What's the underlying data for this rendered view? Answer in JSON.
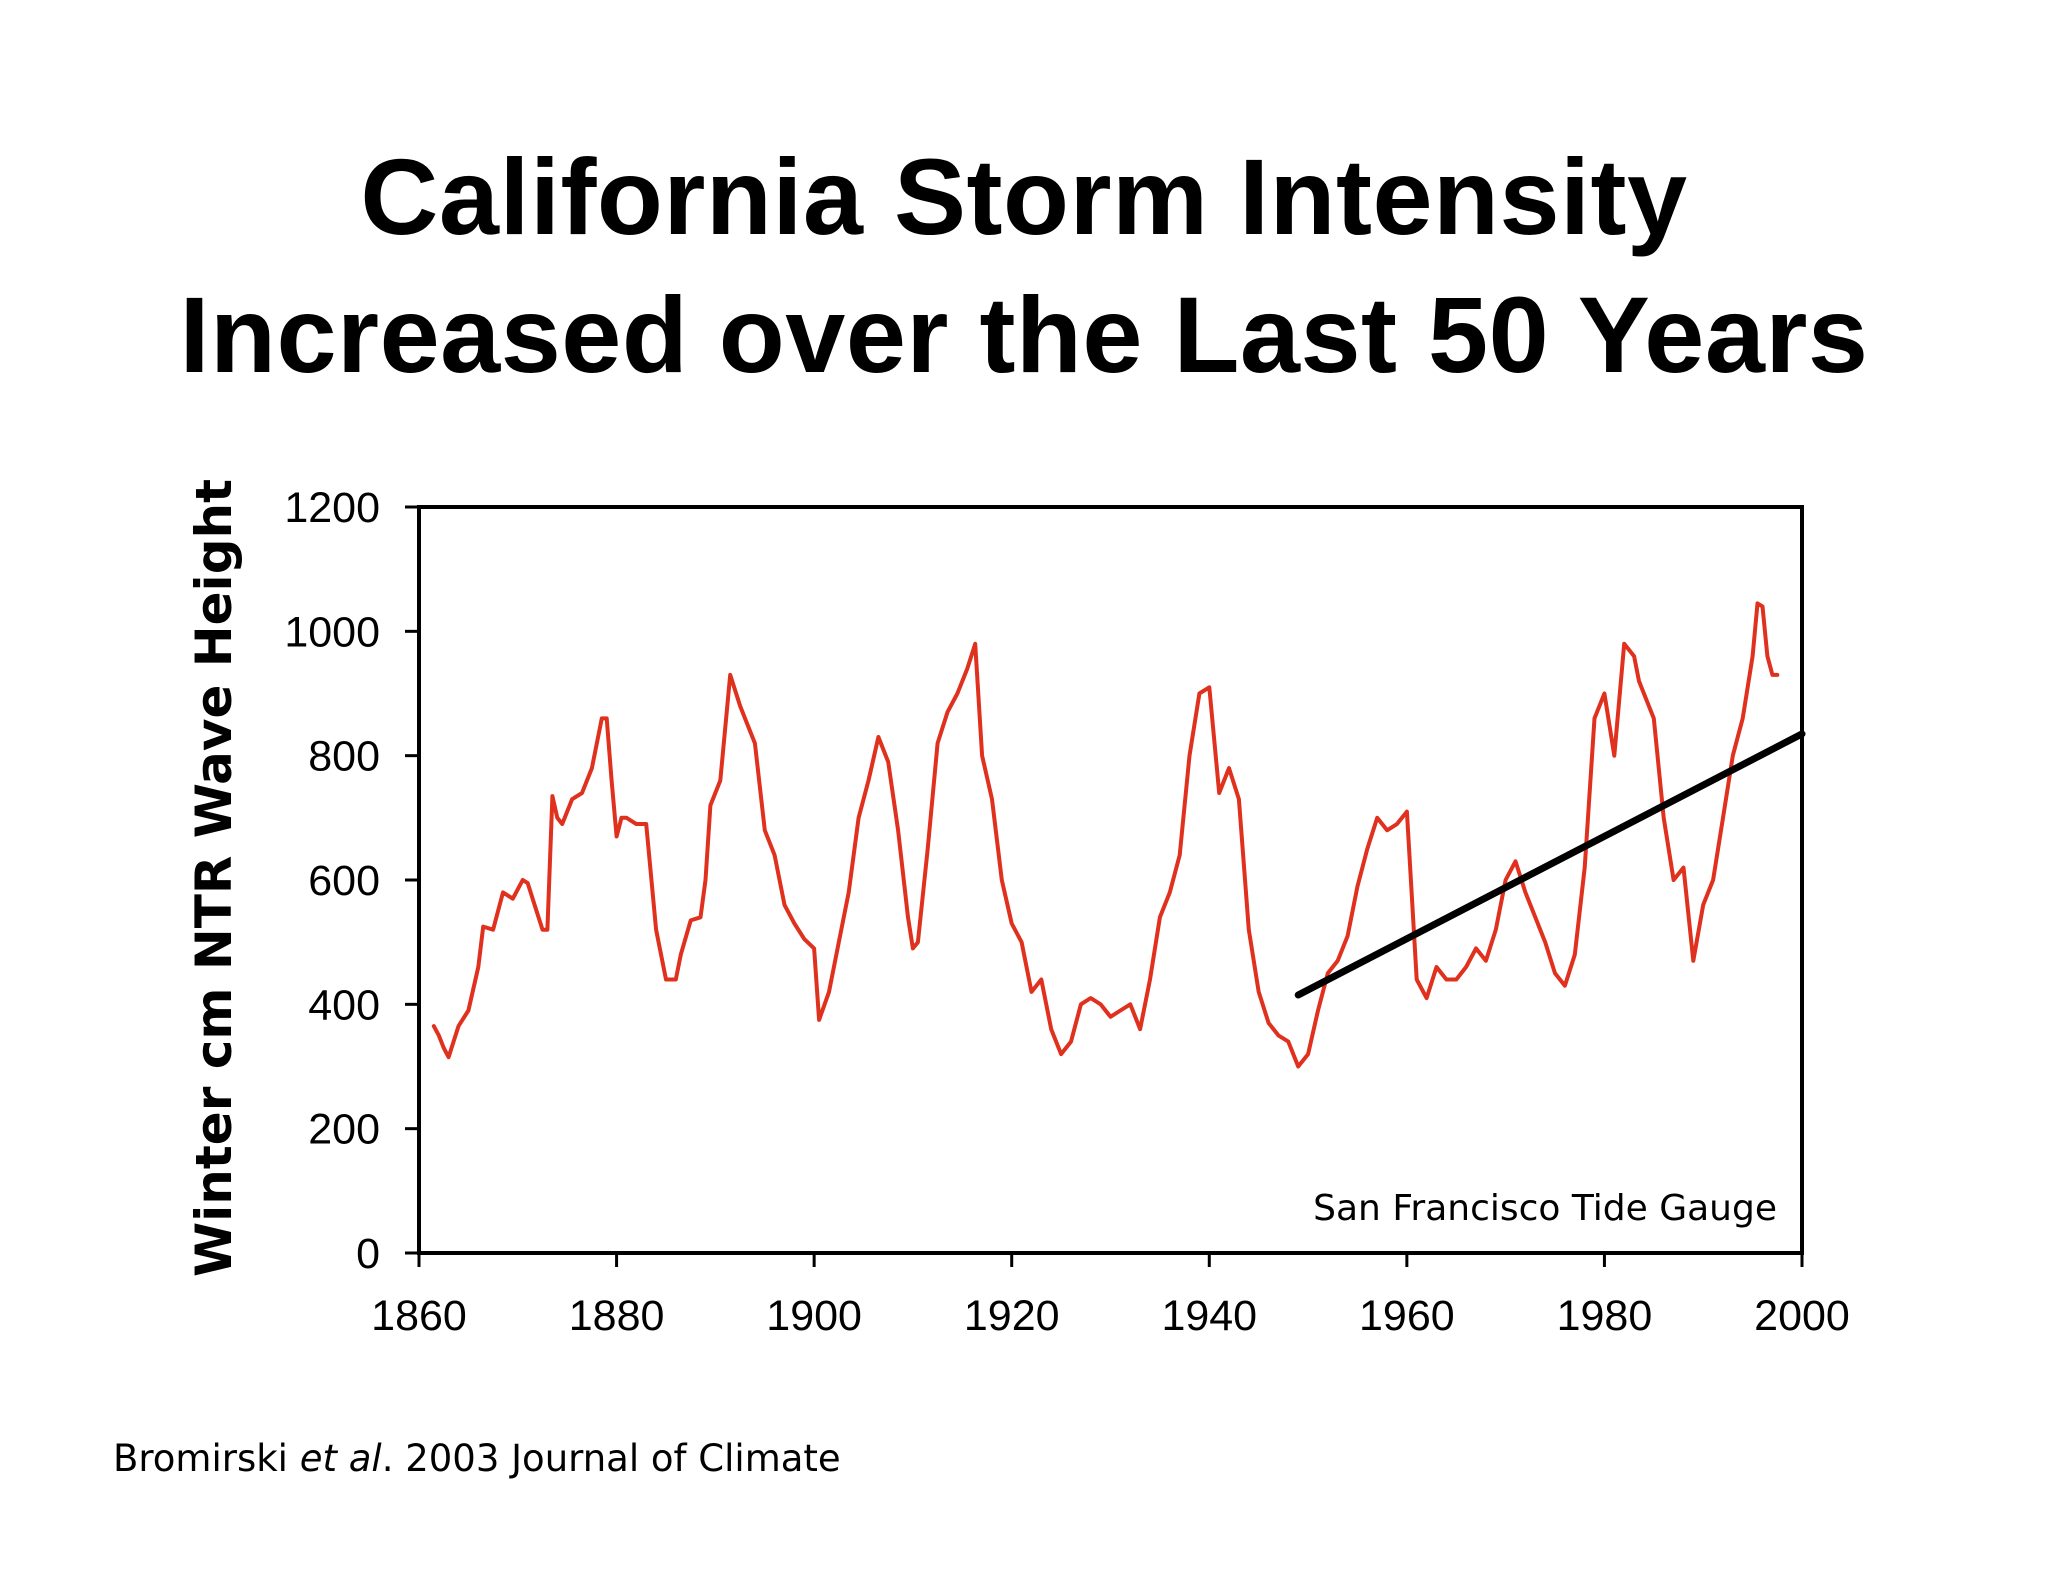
{
  "slide": {
    "title_line1": "California Storm Intensity",
    "title_line2": "Increased over the Last 50 Years"
  },
  "citation": {
    "authors": "Bromirski ",
    "etal": "et al",
    "rest": ". 2003 Journal of Climate"
  },
  "chart_data": {
    "type": "line",
    "title": "",
    "xlabel": "",
    "ylabel": "Winter cm NTR Wave Height",
    "xlim": [
      1860,
      2000
    ],
    "ylim": [
      0,
      1200
    ],
    "x_ticks": [
      1860,
      1880,
      1900,
      1920,
      1940,
      1960,
      1980,
      2000
    ],
    "y_ticks": [
      0,
      200,
      400,
      600,
      800,
      1000,
      1200
    ],
    "grid": false,
    "legend": "none",
    "annotation": "San Francisco Tide Gauge",
    "series": [
      {
        "color": "#e0301e",
        "x": [
          1861.5,
          1862,
          1862.5,
          1863,
          1864,
          1865,
          1866,
          1866.5,
          1867.5,
          1868.5,
          1869.5,
          1870.5,
          1871,
          1871.7,
          1872.5,
          1873,
          1873.5,
          1874,
          1874.5,
          1875.5,
          1876.5,
          1877.5,
          1878.5,
          1879,
          1879.5,
          1880,
          1880.5,
          1881,
          1882,
          1883,
          1884,
          1885,
          1886,
          1886.5,
          1887.5,
          1888.5,
          1889,
          1889.5,
          1890.5,
          1891.5,
          1892.5,
          1893,
          1894,
          1895,
          1896,
          1897,
          1898,
          1899,
          1900,
          1900.5,
          1901.5,
          1902.5,
          1903.5,
          1904.5,
          1905.5,
          1906.5,
          1907.5,
          1908.5,
          1909.5,
          1910,
          1910.5,
          1911.5,
          1912.5,
          1913.5,
          1914.5,
          1915.5,
          1916.3,
          1917,
          1918,
          1919,
          1920,
          1921,
          1922,
          1923,
          1924,
          1925,
          1926,
          1927,
          1928,
          1929,
          1930,
          1931,
          1932,
          1933,
          1934,
          1935,
          1936,
          1937,
          1938,
          1939,
          1940,
          1941,
          1942,
          1943,
          1944,
          1945,
          1946,
          1947,
          1948,
          1949,
          1950,
          1951,
          1952,
          1953,
          1954,
          1955,
          1956,
          1957,
          1958,
          1959,
          1960,
          1961,
          1962,
          1963,
          1964,
          1965,
          1966,
          1967,
          1968,
          1969,
          1970,
          1971,
          1972,
          1973,
          1974,
          1975,
          1976,
          1977,
          1978,
          1979,
          1980,
          1981,
          1982,
          1983,
          1983.5,
          1984,
          1985,
          1986,
          1987,
          1988,
          1989,
          1990,
          1991,
          1992,
          1993,
          1994,
          1995,
          1995.5,
          1996,
          1996.5,
          1997,
          1997.5
        ],
        "y": [
          365,
          350,
          330,
          315,
          365,
          390,
          460,
          525,
          520,
          580,
          570,
          600,
          595,
          560,
          520,
          520,
          735,
          700,
          690,
          730,
          740,
          780,
          860,
          860,
          760,
          670,
          700,
          700,
          690,
          690,
          520,
          440,
          440,
          480,
          535,
          540,
          600,
          720,
          760,
          930,
          880,
          860,
          820,
          680,
          640,
          560,
          530,
          505,
          490,
          375,
          420,
          500,
          580,
          700,
          760,
          830,
          790,
          680,
          540,
          490,
          500,
          650,
          820,
          870,
          900,
          940,
          980,
          800,
          730,
          600,
          530,
          500,
          420,
          440,
          360,
          320,
          340,
          400,
          410,
          400,
          380,
          390,
          400,
          360,
          440,
          540,
          580,
          640,
          800,
          900,
          910,
          740,
          780,
          730,
          520,
          420,
          370,
          350,
          340,
          300,
          320,
          390,
          450,
          470,
          510,
          590,
          650,
          700,
          680,
          690,
          710,
          440,
          410,
          460,
          440,
          440,
          460,
          490,
          470,
          520,
          600,
          630,
          580,
          540,
          500,
          450,
          430,
          480,
          620,
          860,
          900,
          800,
          980,
          960,
          920,
          900,
          860,
          700,
          600,
          620,
          470,
          560,
          600,
          700,
          800,
          860,
          960,
          1045,
          1040,
          960,
          930,
          930
        ]
      },
      {
        "color": "#000000",
        "x": [
          1949,
          2000
        ],
        "y": [
          415,
          835
        ]
      }
    ]
  }
}
